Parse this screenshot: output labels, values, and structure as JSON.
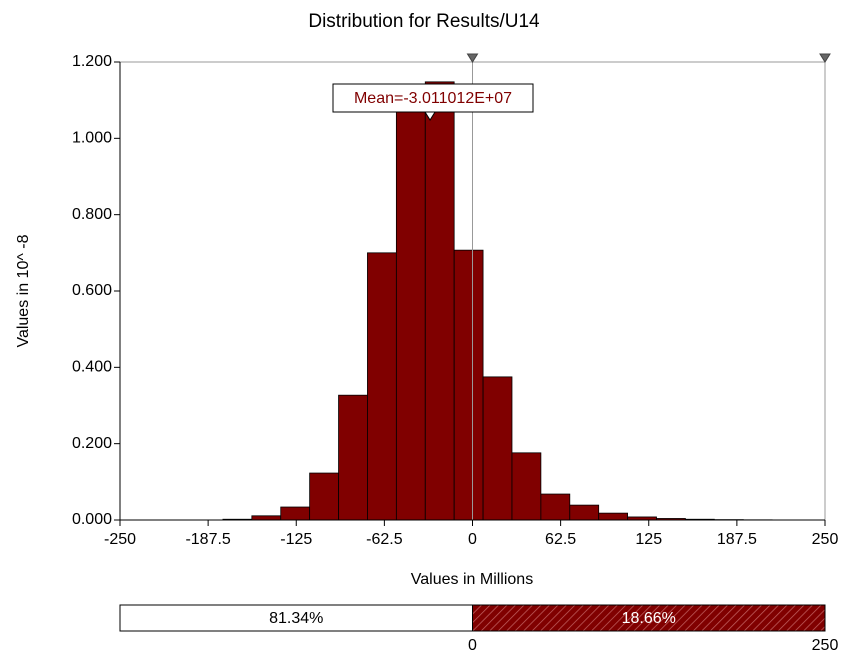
{
  "chart_data": {
    "type": "histogram",
    "title": "Distribution for Results/U14",
    "ylabel": "Values in 10^ -8",
    "xlabel": "Values in Millions",
    "bins": [
      -177,
      -156.5,
      -136,
      -115.5,
      -95,
      -74.5,
      -54,
      -33.5,
      -13,
      7.5,
      28,
      48.5,
      69,
      89.5,
      110,
      130.5,
      151,
      171.5,
      192,
      212.5
    ],
    "values": [
      0.002,
      0.011,
      0.034,
      0.123,
      0.327,
      0.7,
      1.08,
      1.148,
      0.707,
      0.375,
      0.176,
      0.068,
      0.039,
      0.018,
      0.008,
      0.004,
      0.002,
      0.001,
      0.0005
    ],
    "color": "#800000",
    "xlim": [
      -250,
      250
    ],
    "xticks": [
      -250,
      -187.5,
      -125,
      -62.5,
      0,
      62.5,
      125,
      187.5,
      250
    ],
    "ylim": [
      0,
      1.2
    ],
    "yticks": [
      {
        "value": 0,
        "label": "0.000"
      },
      {
        "value": 0.2,
        "label": "0.200"
      },
      {
        "value": 0.4,
        "label": "0.400"
      },
      {
        "value": 0.6,
        "label": "0.600"
      },
      {
        "value": 0.8,
        "label": "0.800"
      },
      {
        "value": 1.0,
        "label": "1.000"
      },
      {
        "value": 1.2,
        "label": "1.200"
      }
    ],
    "mean": {
      "value": -30.11012,
      "label": "Mean=-3.011012E+07"
    },
    "delimiters": [
      0,
      250
    ],
    "percentages": {
      "values": [
        81.34,
        18.66
      ],
      "value_labels": [
        "81.34%",
        "18.66%"
      ]
    }
  }
}
